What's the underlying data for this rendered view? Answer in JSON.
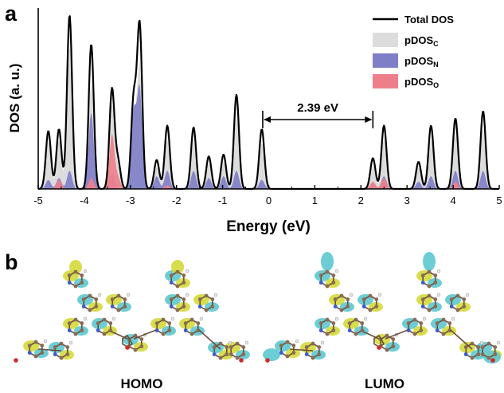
{
  "panels": {
    "a": "a",
    "b": "b"
  },
  "chart_data": {
    "type": "line",
    "xlabel": "Energy (eV)",
    "ylabel": "DOS (a. u.)",
    "xlim": [
      -5,
      5
    ],
    "ylim": [
      0,
      1.0
    ],
    "x_ticks": [
      -5,
      -4,
      -3,
      -2,
      -1,
      0,
      1,
      2,
      3,
      4,
      5
    ],
    "y_ticks_shown": false,
    "legend": {
      "position": "top-right",
      "entries": [
        {
          "label": "Total DOS",
          "style": "line",
          "color": "#000000"
        },
        {
          "label": "pDOS",
          "sub": "C",
          "style": "fill",
          "color": "#dcdcdc"
        },
        {
          "label": "pDOS",
          "sub": "N",
          "style": "fill",
          "color": "#7f7fc8"
        },
        {
          "label": "pDOS",
          "sub": "O",
          "style": "fill",
          "color": "#ee7f8a"
        }
      ]
    },
    "annotation": {
      "text": "2.39 eV",
      "from": -0.13,
      "to": 2.26
    },
    "peak_width": 0.055,
    "series": [
      {
        "name": "Total DOS",
        "peaks": [
          {
            "x": -4.78,
            "h": 0.32
          },
          {
            "x": -4.55,
            "h": 0.33
          },
          {
            "x": -4.32,
            "h": 0.96
          },
          {
            "x": -3.85,
            "h": 0.8
          },
          {
            "x": -3.4,
            "h": 0.55
          },
          {
            "x": -3.27,
            "h": 0.15
          },
          {
            "x": -2.93,
            "h": 0.49
          },
          {
            "x": -2.8,
            "h": 0.9
          },
          {
            "x": -2.43,
            "h": 0.16
          },
          {
            "x": -2.2,
            "h": 0.35
          },
          {
            "x": -1.63,
            "h": 0.34
          },
          {
            "x": -1.3,
            "h": 0.18
          },
          {
            "x": -0.98,
            "h": 0.19
          },
          {
            "x": -0.7,
            "h": 0.52
          },
          {
            "x": -0.15,
            "h": 0.33
          },
          {
            "x": 2.26,
            "h": 0.17
          },
          {
            "x": 2.5,
            "h": 0.35
          },
          {
            "x": 3.25,
            "h": 0.15
          },
          {
            "x": 3.52,
            "h": 0.35
          },
          {
            "x": 4.05,
            "h": 0.39
          },
          {
            "x": 4.65,
            "h": 0.43
          }
        ]
      },
      {
        "name": "pDOS_C",
        "peaks": [
          {
            "x": -4.78,
            "h": 0.26
          },
          {
            "x": -4.55,
            "h": 0.27
          },
          {
            "x": -4.32,
            "h": 0.78
          },
          {
            "x": -3.85,
            "h": 0.58
          },
          {
            "x": -3.4,
            "h": 0.46
          },
          {
            "x": -3.27,
            "h": 0.12
          },
          {
            "x": -2.93,
            "h": 0.38
          },
          {
            "x": -2.8,
            "h": 0.68
          },
          {
            "x": -2.43,
            "h": 0.12
          },
          {
            "x": -2.2,
            "h": 0.27
          },
          {
            "x": -1.63,
            "h": 0.26
          },
          {
            "x": -1.3,
            "h": 0.14
          },
          {
            "x": -0.98,
            "h": 0.15
          },
          {
            "x": -0.7,
            "h": 0.4
          },
          {
            "x": -0.15,
            "h": 0.25
          },
          {
            "x": 2.26,
            "h": 0.13
          },
          {
            "x": 2.5,
            "h": 0.27
          },
          {
            "x": 3.25,
            "h": 0.12
          },
          {
            "x": 3.52,
            "h": 0.27
          },
          {
            "x": 4.05,
            "h": 0.3
          },
          {
            "x": 4.65,
            "h": 0.33
          }
        ]
      },
      {
        "name": "pDOS_N",
        "peaks": [
          {
            "x": -4.78,
            "h": 0.05
          },
          {
            "x": -4.55,
            "h": 0.06
          },
          {
            "x": -4.32,
            "h": 0.1
          },
          {
            "x": -3.85,
            "h": 0.42
          },
          {
            "x": -3.4,
            "h": 0.08
          },
          {
            "x": -2.93,
            "h": 0.42
          },
          {
            "x": -2.8,
            "h": 0.55
          },
          {
            "x": -2.43,
            "h": 0.07
          },
          {
            "x": -2.2,
            "h": 0.1
          },
          {
            "x": -1.63,
            "h": 0.1
          },
          {
            "x": -1.3,
            "h": 0.06
          },
          {
            "x": -0.98,
            "h": 0.07
          },
          {
            "x": -0.7,
            "h": 0.1
          },
          {
            "x": -0.15,
            "h": 0.05
          },
          {
            "x": 2.26,
            "h": 0.03
          },
          {
            "x": 2.5,
            "h": 0.07
          },
          {
            "x": 3.25,
            "h": 0.04
          },
          {
            "x": 3.52,
            "h": 0.07
          },
          {
            "x": 4.05,
            "h": 0.1
          },
          {
            "x": 4.65,
            "h": 0.1
          }
        ]
      },
      {
        "name": "pDOS_O",
        "peaks": [
          {
            "x": -4.55,
            "h": 0.05
          },
          {
            "x": -3.85,
            "h": 0.06
          },
          {
            "x": -3.4,
            "h": 0.3
          },
          {
            "x": -3.27,
            "h": 0.06
          },
          {
            "x": -2.2,
            "h": 0.02
          },
          {
            "x": 2.26,
            "h": 0.04
          },
          {
            "x": 2.5,
            "h": 0.06
          },
          {
            "x": 4.05,
            "h": 0.04
          }
        ]
      }
    ]
  },
  "molecules": [
    {
      "label": "HOMO"
    },
    {
      "label": "LUMO"
    }
  ],
  "colors": {
    "axis": "#000000",
    "total": "#000000",
    "pdos_c": "#dcdcdc",
    "pdos_n": "#7f7fc8",
    "pdos_o": "#ee7f8a",
    "orbital_yellow": "#d4d93a",
    "orbital_cyan": "#5cc8cf",
    "atom_carbon": "#8a6a55",
    "atom_nitrogen": "#3a5cd0",
    "atom_oxygen": "#d02a2a",
    "atom_hydrogen": "#e8e8e8"
  }
}
